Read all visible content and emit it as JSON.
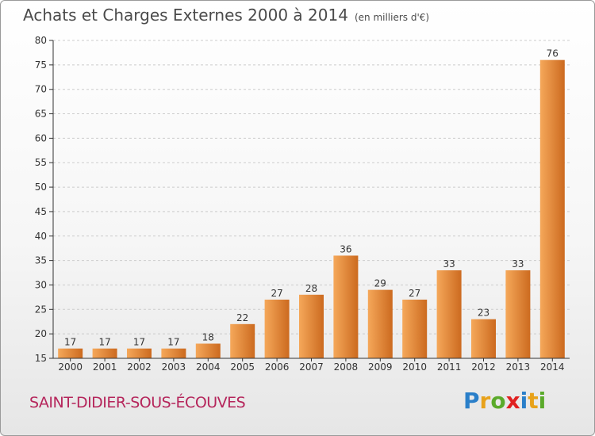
{
  "title": "Achats et Charges Externes 2000 à 2014",
  "unit_note": "(en milliers d'€)",
  "city": "SAINT-DIDIER-SOUS-ÉCOUVES",
  "logo": {
    "letters": [
      "P",
      "r",
      "o",
      "x",
      "i",
      "t",
      "i"
    ],
    "colors": [
      "#2a7fc9",
      "#e8a21a",
      "#5aaa2a",
      "#e02020",
      "#2a7fc9",
      "#e8a21a",
      "#5aaa2a"
    ]
  },
  "colors": {
    "bar_light": "#f5a85a",
    "bar_dark": "#cc6a1f",
    "axis": "#333333",
    "grid": "#cccccc",
    "city": "#b5255b"
  },
  "chart_data": {
    "type": "bar",
    "categories": [
      "2000",
      "2001",
      "2002",
      "2003",
      "2004",
      "2005",
      "2006",
      "2007",
      "2008",
      "2009",
      "2010",
      "2011",
      "2012",
      "2013",
      "2014"
    ],
    "values": [
      17,
      17,
      17,
      17,
      18,
      22,
      27,
      28,
      36,
      29,
      27,
      33,
      23,
      33,
      76
    ],
    "ylim": [
      15,
      80
    ],
    "yticks": [
      15,
      20,
      25,
      30,
      35,
      40,
      45,
      50,
      55,
      60,
      65,
      70,
      75,
      80
    ],
    "grid": "horizontal dashed",
    "data_labels": true
  }
}
